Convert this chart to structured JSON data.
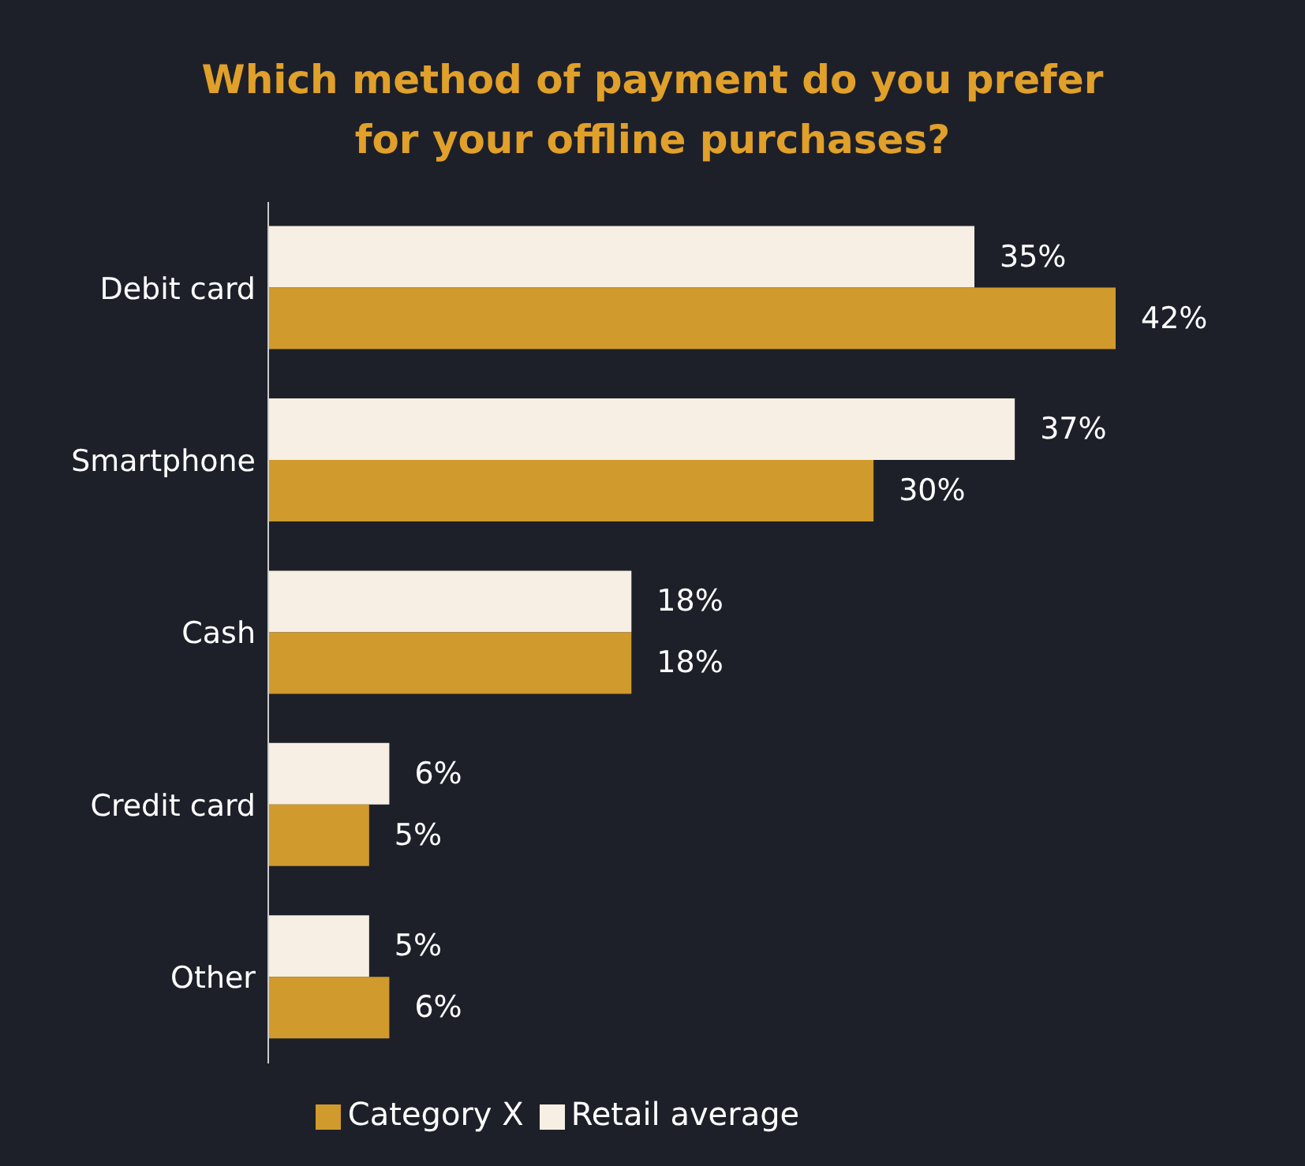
{
  "chart_data": {
    "type": "bar",
    "orientation": "horizontal",
    "title": "Which method of payment do you prefer for your offline purchases?",
    "categories": [
      "Debit card",
      "Smartphone",
      "Cash",
      "Credit card",
      "Other"
    ],
    "series": [
      {
        "name": "Retail average",
        "color": "#f7efe3",
        "values": [
          35,
          37,
          18,
          6,
          5
        ],
        "value_labels": [
          "35%",
          "37%",
          "18%",
          "6%",
          "5%"
        ]
      },
      {
        "name": "Category X",
        "color": "#d09a2c",
        "values": [
          42,
          30,
          18,
          5,
          6
        ],
        "value_labels": [
          "42%",
          "30%",
          "18%",
          "5%",
          "6%"
        ]
      }
    ],
    "legend": "bottom",
    "grid": false
  }
}
